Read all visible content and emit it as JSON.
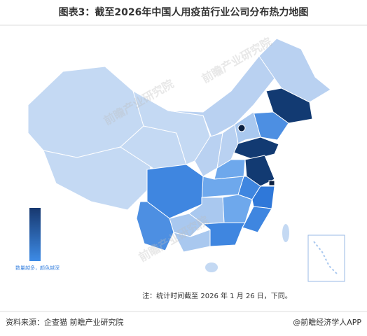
{
  "header": {
    "title": "图表3：截至2026年中国人用疫苗行业公司分布热力地图"
  },
  "legend": {
    "label": "数量越多，颜色越深"
  },
  "watermark": "前瞻产业研究院",
  "footer": {
    "note": "注：统计时间截至 2026 年 1 月 26 日，下同。",
    "source": "资料来源：企查猫 前瞻产业研究院",
    "brand": "@前瞻经济学人APP"
  }
}
